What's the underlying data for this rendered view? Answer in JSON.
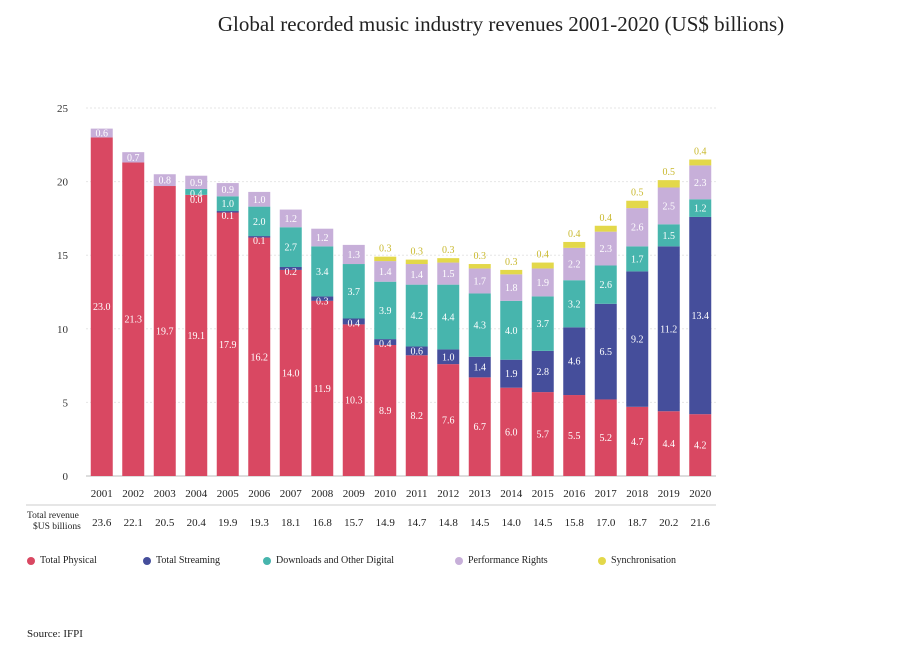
{
  "chart_data": {
    "type": "bar",
    "stacked": true,
    "title": "Global recorded music industry revenues 2001-2020 (US$ billions)",
    "categories": [
      "2001",
      "2002",
      "2003",
      "2004",
      "2005",
      "2006",
      "2007",
      "2008",
      "2009",
      "2010",
      "2011",
      "2012",
      "2013",
      "2014",
      "2015",
      "2016",
      "2017",
      "2018",
      "2019",
      "2020"
    ],
    "ylim": [
      0,
      25
    ],
    "yticks": [
      0,
      5,
      10,
      15,
      20,
      25
    ],
    "grid": true,
    "legend_position": "bottom",
    "series": [
      {
        "name": "Total Physical",
        "color": "#d94862",
        "values": [
          23.0,
          21.3,
          19.7,
          19.1,
          17.9,
          16.2,
          14.0,
          11.9,
          10.3,
          8.9,
          8.2,
          7.6,
          6.7,
          6.0,
          5.7,
          5.5,
          5.2,
          4.7,
          4.4,
          4.2
        ]
      },
      {
        "name": "Total Streaming",
        "color": "#454e9b",
        "values": [
          null,
          null,
          null,
          0.0,
          0.1,
          0.1,
          0.2,
          0.3,
          0.4,
          0.4,
          0.6,
          1.0,
          1.4,
          1.9,
          2.8,
          4.6,
          6.5,
          9.2,
          11.2,
          13.4
        ]
      },
      {
        "name": "Downloads and Other Digital",
        "color": "#47b5ad",
        "values": [
          null,
          null,
          null,
          0.4,
          1.0,
          2.0,
          2.7,
          3.4,
          3.7,
          3.9,
          4.2,
          4.4,
          4.3,
          4.0,
          3.7,
          3.2,
          2.6,
          1.7,
          1.5,
          1.2
        ]
      },
      {
        "name": "Performance Rights",
        "color": "#c7afd9",
        "values": [
          0.6,
          0.7,
          0.8,
          0.9,
          0.9,
          1.0,
          1.2,
          1.2,
          1.3,
          1.4,
          1.4,
          1.5,
          1.7,
          1.8,
          1.9,
          2.2,
          2.3,
          2.6,
          2.5,
          2.3
        ]
      },
      {
        "name": "Synchronisation",
        "color": "#e3d84a",
        "values": [
          null,
          null,
          null,
          null,
          null,
          null,
          null,
          null,
          null,
          0.3,
          0.3,
          0.3,
          0.3,
          0.3,
          0.4,
          0.4,
          0.4,
          0.5,
          0.5,
          0.4
        ]
      }
    ],
    "totals_label": [
      "Total revenue",
      "$US billions"
    ],
    "totals": [
      "23.6",
      "22.1",
      "20.5",
      "20.4",
      "19.9",
      "19.3",
      "18.1",
      "16.8",
      "15.7",
      "14.9",
      "14.7",
      "14.8",
      "14.5",
      "14.0",
      "14.5",
      "15.8",
      "17.0",
      "18.7",
      "20.2",
      "21.6"
    ]
  },
  "source": "Source: IFPI"
}
